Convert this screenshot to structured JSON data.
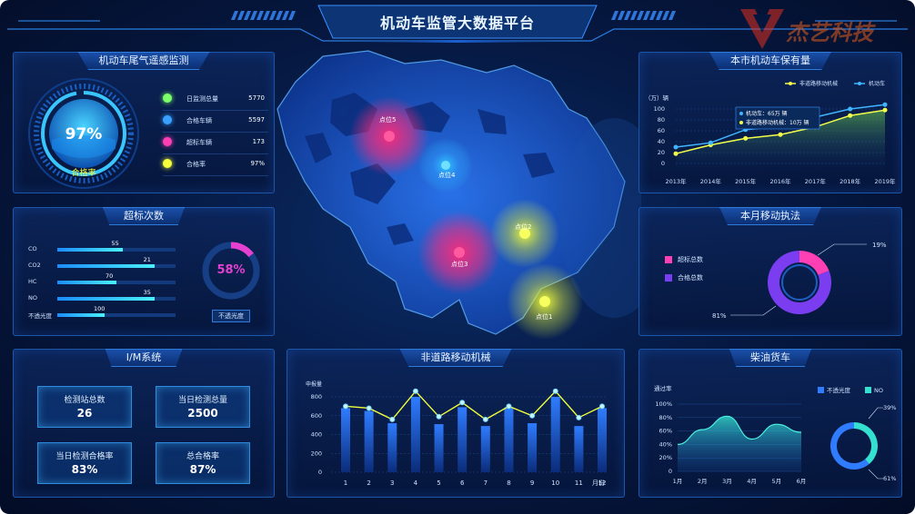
{
  "header": {
    "title": "机动车监管大数据平台",
    "watermark": "杰艺科技"
  },
  "emission": {
    "title": "机动车尾气遥感监测",
    "gauge_value": "97%",
    "gauge_fraction": 0.97,
    "gauge_label": "合格率",
    "stats": [
      {
        "label": "日监测总量",
        "value": "5770",
        "color": "#7dff6a"
      },
      {
        "label": "合格车辆",
        "value": "5597",
        "color": "#3aa0ff"
      },
      {
        "label": "超标车辆",
        "value": "173",
        "color": "#ff3fb4"
      },
      {
        "label": "合格率",
        "value": "97%",
        "color": "#f6ff3a"
      }
    ]
  },
  "exceed": {
    "title": "超标次数",
    "bars": [
      {
        "label": "CO",
        "value": "55",
        "fraction": 0.55
      },
      {
        "label": "CO2",
        "value": "21",
        "fraction": 0.82
      },
      {
        "label": "HC",
        "value": "70",
        "fraction": 0.5
      },
      {
        "label": "NO",
        "value": "35",
        "fraction": 0.82
      },
      {
        "label": "不透光度",
        "value": "100",
        "fraction": 0.4
      }
    ],
    "ring_value": "58%",
    "ring_fraction": 0.58,
    "ring_caption": "不透光度"
  },
  "im": {
    "title": "I/M系统",
    "kpis": [
      {
        "label": "检测站总数",
        "value": "26"
      },
      {
        "label": "当日检测总量",
        "value": "2500"
      },
      {
        "label": "当日检测合格率",
        "value": "83%"
      },
      {
        "label": "总合格率",
        "value": "87%"
      }
    ]
  },
  "map": {
    "points": [
      {
        "label": "点位5",
        "color": "#ff2a7a"
      },
      {
        "label": "点位4",
        "color": "#2fd0ff"
      },
      {
        "label": "点位3",
        "color": "#ff2a7a"
      },
      {
        "label": "点位2",
        "color": "#f0ff3a"
      },
      {
        "label": "点位1",
        "color": "#f0ff3a"
      }
    ]
  },
  "ownership": {
    "title": "本市机动车保有量",
    "unit": "（万）辆",
    "legend": [
      "非道路移动机械",
      "机动车"
    ],
    "tooltip": [
      "机动车：65万 辆",
      "非道路移动机械：10万 辆"
    ],
    "chart_data": {
      "type": "line",
      "x": [
        "2013年",
        "2014年",
        "2015年",
        "2016年",
        "2017年",
        "2018年",
        "2019年"
      ],
      "series": [
        {
          "name": "机动车",
          "values": [
            30,
            38,
            62,
            68,
            85,
            100,
            108
          ],
          "color": "#3fb6ff"
        },
        {
          "name": "非道路移动机械",
          "values": [
            18,
            34,
            46,
            53,
            67,
            88,
            98
          ],
          "color": "#f3ff4a"
        }
      ],
      "ylim": [
        0,
        100
      ],
      "yticks": [
        0,
        20,
        40,
        60,
        80,
        100
      ]
    }
  },
  "enforcement": {
    "title": "本月移动执法",
    "legend": [
      {
        "label": "超标总数",
        "color": "#ff3fb4"
      },
      {
        "label": "合格总数",
        "color": "#7a3df0"
      }
    ],
    "chart_data": {
      "type": "pie",
      "slices": [
        {
          "label": "超标总数",
          "value": 19
        },
        {
          "label": "合格总数",
          "value": 81
        }
      ]
    },
    "labels": [
      "19%",
      "81%"
    ]
  },
  "machinery": {
    "title": "非道路移动机械",
    "ylabel": "申报量",
    "xunit": "月份",
    "chart_data": {
      "type": "bar",
      "categories": [
        "1",
        "2",
        "3",
        "4",
        "5",
        "6",
        "7",
        "8",
        "9",
        "10",
        "11",
        "12"
      ],
      "values": [
        680,
        650,
        520,
        800,
        510,
        690,
        490,
        690,
        520,
        800,
        490,
        680
      ],
      "line_values": [
        700,
        680,
        560,
        860,
        590,
        740,
        560,
        700,
        600,
        860,
        580,
        700
      ],
      "ylim": [
        0,
        800
      ],
      "yticks": [
        0,
        200,
        400,
        600,
        800
      ]
    }
  },
  "truck": {
    "title": "柴油货车",
    "ylabel": "通过率",
    "legend": [
      {
        "label": "不透光度",
        "color": "#2f7cff"
      },
      {
        "label": "NO",
        "color": "#34e0d0"
      }
    ],
    "chart_data": {
      "type": "area",
      "x": [
        "1月",
        "2月",
        "3月",
        "4月",
        "5月",
        "6月"
      ],
      "values": [
        40,
        62,
        82,
        48,
        70,
        58
      ],
      "yticks": [
        "0",
        "20%",
        "40%",
        "60%",
        "80%",
        "100%"
      ]
    },
    "donut": {
      "labels": [
        "39%",
        "61%"
      ],
      "values": [
        39,
        61
      ]
    }
  }
}
